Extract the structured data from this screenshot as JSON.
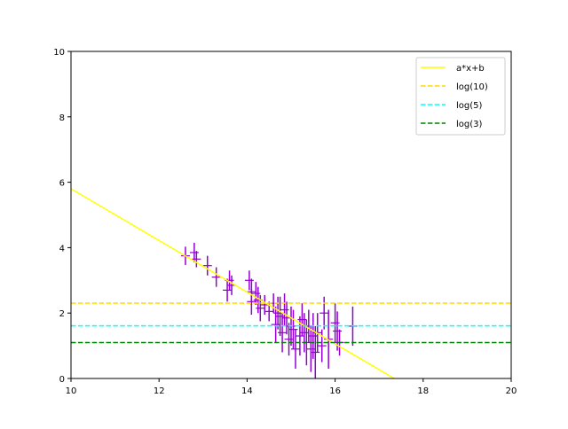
{
  "chart_data": {
    "type": "scatter",
    "title": "",
    "xlabel": "",
    "ylabel": "",
    "xlim": [
      10,
      20
    ],
    "ylim": [
      0,
      10
    ],
    "xticks": [
      "10",
      "12",
      "14",
      "16",
      "18",
      "20"
    ],
    "yticks": [
      "0",
      "2",
      "4",
      "6",
      "8",
      "10"
    ],
    "grid": false,
    "legend_placement": "top-right",
    "fit_line": {
      "name": "a*x+b",
      "a": -0.79,
      "b": 13.7,
      "color": "#ffff00"
    },
    "hlines": [
      {
        "name": "log(10)",
        "y": 2.303,
        "color": "#ffd700"
      },
      {
        "name": "log(5)",
        "y": 1.609,
        "color": "#00ffff"
      },
      {
        "name": "log(3)",
        "y": 1.099,
        "color": "#008000"
      }
    ],
    "errorbar_color": "#9400d3",
    "points": [
      {
        "x": 12.6,
        "y": 3.75,
        "err": 0.28
      },
      {
        "x": 12.8,
        "y": 3.85,
        "err": 0.3
      },
      {
        "x": 12.85,
        "y": 3.65,
        "err": 0.25
      },
      {
        "x": 13.1,
        "y": 3.45,
        "err": 0.3
      },
      {
        "x": 13.3,
        "y": 3.1,
        "err": 0.3
      },
      {
        "x": 13.55,
        "y": 2.7,
        "err": 0.35
      },
      {
        "x": 13.6,
        "y": 3.0,
        "err": 0.3
      },
      {
        "x": 13.65,
        "y": 2.85,
        "err": 0.3
      },
      {
        "x": 14.05,
        "y": 3.0,
        "err": 0.3
      },
      {
        "x": 14.1,
        "y": 2.65,
        "err": 0.4
      },
      {
        "x": 14.1,
        "y": 2.35,
        "err": 0.4
      },
      {
        "x": 14.2,
        "y": 2.6,
        "err": 0.35
      },
      {
        "x": 14.25,
        "y": 2.4,
        "err": 0.4
      },
      {
        "x": 14.3,
        "y": 2.15,
        "err": 0.4
      },
      {
        "x": 14.4,
        "y": 2.25,
        "err": 0.3
      },
      {
        "x": 14.5,
        "y": 2.05,
        "err": 0.3
      },
      {
        "x": 14.6,
        "y": 2.3,
        "err": 0.3
      },
      {
        "x": 14.65,
        "y": 1.65,
        "err": 0.55
      },
      {
        "x": 14.7,
        "y": 2.0,
        "err": 0.5
      },
      {
        "x": 14.75,
        "y": 1.9,
        "err": 0.6
      },
      {
        "x": 14.8,
        "y": 1.4,
        "err": 0.6
      },
      {
        "x": 14.85,
        "y": 2.1,
        "err": 0.5
      },
      {
        "x": 14.9,
        "y": 1.85,
        "err": 0.5
      },
      {
        "x": 14.95,
        "y": 1.2,
        "err": 0.5
      },
      {
        "x": 15.0,
        "y": 1.6,
        "err": 0.6
      },
      {
        "x": 15.05,
        "y": 1.5,
        "err": 0.6
      },
      {
        "x": 15.1,
        "y": 0.9,
        "err": 0.6
      },
      {
        "x": 15.2,
        "y": 1.3,
        "err": 0.6
      },
      {
        "x": 15.25,
        "y": 1.8,
        "err": 0.5
      },
      {
        "x": 15.3,
        "y": 1.4,
        "err": 0.6
      },
      {
        "x": 15.35,
        "y": 1.1,
        "err": 0.7
      },
      {
        "x": 15.4,
        "y": 1.6,
        "err": 0.5
      },
      {
        "x": 15.45,
        "y": 0.9,
        "err": 0.7
      },
      {
        "x": 15.5,
        "y": 1.3,
        "err": 0.7
      },
      {
        "x": 15.55,
        "y": 0.8,
        "err": 0.8
      },
      {
        "x": 15.6,
        "y": 1.4,
        "err": 0.6
      },
      {
        "x": 15.7,
        "y": 1.0,
        "err": 0.5
      },
      {
        "x": 15.75,
        "y": 2.0,
        "err": 0.5
      },
      {
        "x": 15.85,
        "y": 1.2,
        "err": 0.9
      },
      {
        "x": 16.0,
        "y": 1.7,
        "err": 0.6
      },
      {
        "x": 16.05,
        "y": 1.45,
        "err": 0.6
      },
      {
        "x": 16.1,
        "y": 1.1,
        "err": 0.4
      },
      {
        "x": 16.4,
        "y": 1.6,
        "err": 0.6
      }
    ],
    "legend": [
      "a*x+b",
      "log(10)",
      "log(5)",
      "log(3)"
    ]
  }
}
